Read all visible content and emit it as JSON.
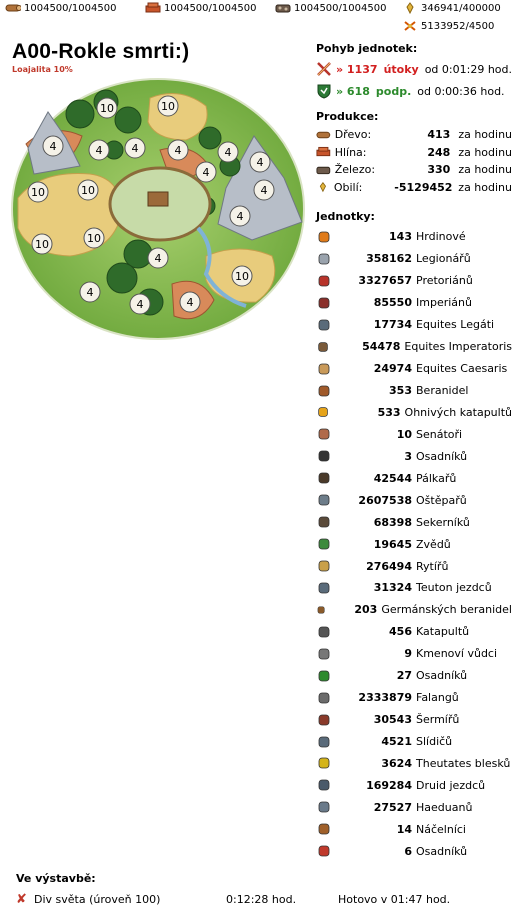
{
  "resources": {
    "wood": "1004500/1004500",
    "clay": "1004500/1004500",
    "iron": "1004500/1004500",
    "crop": "346941/400000",
    "consumption": "5133952/4500"
  },
  "village": {
    "name": "A00-Rokle smrti:)",
    "loyalty": "Loajalita 10%",
    "fields": [
      "10",
      "4",
      "10",
      "4",
      "4",
      "4",
      "4",
      "10",
      "10",
      "10",
      "10",
      "4",
      "4",
      "4",
      "4",
      "4",
      "4",
      "4",
      "10",
      "4"
    ]
  },
  "movements": {
    "title": "Pohyb jednotek:",
    "attack": {
      "amount": "» 1137",
      "label": "útoky",
      "time": "od 0:01:29 hod."
    },
    "support": {
      "amount": "» 618",
      "label": "podp.",
      "time": "od 0:00:36 hod."
    }
  },
  "production": {
    "title": "Produkce:",
    "unit": "za hodinu",
    "rows": [
      {
        "name": "Dřevo:",
        "value": "413"
      },
      {
        "name": "Hlína:",
        "value": "248"
      },
      {
        "name": "Železo:",
        "value": "330"
      },
      {
        "name": "Obilí:",
        "value": "-5129452"
      }
    ]
  },
  "units": {
    "title": "Jednotky:",
    "rows": [
      {
        "count": "143",
        "name": "Hrdinové"
      },
      {
        "count": "358162",
        "name": "Legionářů"
      },
      {
        "count": "3327657",
        "name": "Pretoriánů"
      },
      {
        "count": "85550",
        "name": "Imperiánů"
      },
      {
        "count": "17734",
        "name": "Equites Legáti"
      },
      {
        "count": "54478",
        "name": "Equites Imperatoris"
      },
      {
        "count": "24974",
        "name": "Equites Caesaris"
      },
      {
        "count": "353",
        "name": "Beranidel"
      },
      {
        "count": "533",
        "name": "Ohnivých katapultů"
      },
      {
        "count": "10",
        "name": "Senátoři"
      },
      {
        "count": "3",
        "name": "Osadníků"
      },
      {
        "count": "42544",
        "name": "Pálkařů"
      },
      {
        "count": "2607538",
        "name": "Oštěpařů"
      },
      {
        "count": "68398",
        "name": "Sekerníků"
      },
      {
        "count": "19645",
        "name": "Zvědů"
      },
      {
        "count": "276494",
        "name": "Rytířů"
      },
      {
        "count": "31324",
        "name": "Teuton jezdců"
      },
      {
        "count": "203",
        "name": "Germánských beranidel"
      },
      {
        "count": "456",
        "name": "Katapultů"
      },
      {
        "count": "9",
        "name": "Kmenoví vůdci"
      },
      {
        "count": "27",
        "name": "Osadníků"
      },
      {
        "count": "2333879",
        "name": "Falangů"
      },
      {
        "count": "30543",
        "name": "Šermířů"
      },
      {
        "count": "4521",
        "name": "Slídičů"
      },
      {
        "count": "3624",
        "name": "Theutates blesků"
      },
      {
        "count": "169284",
        "name": "Druid jezdců"
      },
      {
        "count": "27527",
        "name": "Haeduanů"
      },
      {
        "count": "14",
        "name": "Náčelníci"
      },
      {
        "count": "6",
        "name": "Osadníků"
      }
    ]
  },
  "construction": {
    "title": "Ve výstavbě:",
    "item": "Div světa (úroveň 100)",
    "remaining": "0:12:28 hod.",
    "done": "Hotovo v 01:47 hod."
  }
}
